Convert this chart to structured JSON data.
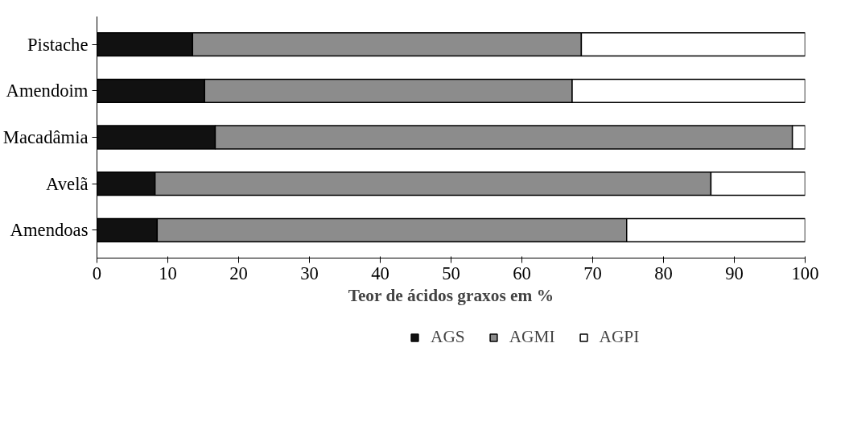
{
  "chart_data": {
    "type": "bar",
    "orientation": "horizontal",
    "stacked": true,
    "xlabel": "Teor de ácidos graxos em %",
    "categories": [
      "Pistache",
      "Amendoim",
      "Macadâmia",
      "Avelã",
      "Amendoas"
    ],
    "series": [
      {
        "name": "AGS",
        "color": "#111111",
        "values": [
          13.5,
          15.2,
          16.7,
          8.2,
          8.5
        ]
      },
      {
        "name": "AGMI",
        "color": "#8c8c8c",
        "values": [
          54.9,
          51.9,
          81.5,
          78.5,
          66.3
        ]
      },
      {
        "name": "AGPI",
        "color": "#ffffff",
        "values": [
          31.6,
          32.9,
          1.8,
          13.3,
          25.2
        ]
      }
    ],
    "xlim": [
      0,
      100
    ],
    "xticks": [
      0,
      10,
      20,
      30,
      40,
      50,
      60,
      70,
      80,
      90,
      100
    ],
    "grid": false,
    "legend": "bottom"
  }
}
